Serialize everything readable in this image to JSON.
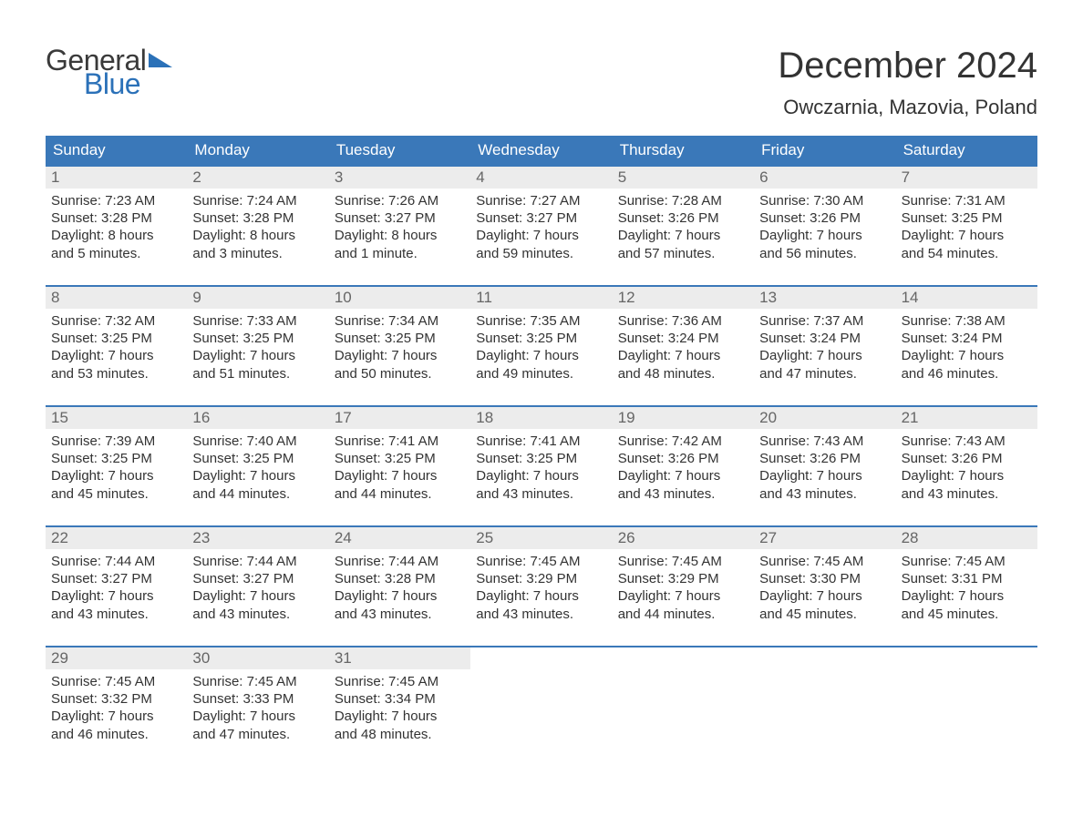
{
  "brand": {
    "word1": "General",
    "word2": "Blue",
    "triangle_color": "#2b71b8"
  },
  "title": "December 2024",
  "location": "Owczarnia, Mazovia, Poland",
  "colors": {
    "header_bg": "#3a78b9",
    "header_text": "#ffffff",
    "daynum_bg": "#ececec",
    "daynum_text": "#666666",
    "week_border": "#3a78b9",
    "body_text": "#333333",
    "page_bg": "#ffffff"
  },
  "fonts": {
    "title_size": 40,
    "location_size": 22,
    "weekday_size": 17,
    "body_size": 15
  },
  "weekdays": [
    "Sunday",
    "Monday",
    "Tuesday",
    "Wednesday",
    "Thursday",
    "Friday",
    "Saturday"
  ],
  "weeks": [
    [
      {
        "n": "1",
        "sunrise": "Sunrise: 7:23 AM",
        "sunset": "Sunset: 3:28 PM",
        "d1": "Daylight: 8 hours",
        "d2": "and 5 minutes."
      },
      {
        "n": "2",
        "sunrise": "Sunrise: 7:24 AM",
        "sunset": "Sunset: 3:28 PM",
        "d1": "Daylight: 8 hours",
        "d2": "and 3 minutes."
      },
      {
        "n": "3",
        "sunrise": "Sunrise: 7:26 AM",
        "sunset": "Sunset: 3:27 PM",
        "d1": "Daylight: 8 hours",
        "d2": "and 1 minute."
      },
      {
        "n": "4",
        "sunrise": "Sunrise: 7:27 AM",
        "sunset": "Sunset: 3:27 PM",
        "d1": "Daylight: 7 hours",
        "d2": "and 59 minutes."
      },
      {
        "n": "5",
        "sunrise": "Sunrise: 7:28 AM",
        "sunset": "Sunset: 3:26 PM",
        "d1": "Daylight: 7 hours",
        "d2": "and 57 minutes."
      },
      {
        "n": "6",
        "sunrise": "Sunrise: 7:30 AM",
        "sunset": "Sunset: 3:26 PM",
        "d1": "Daylight: 7 hours",
        "d2": "and 56 minutes."
      },
      {
        "n": "7",
        "sunrise": "Sunrise: 7:31 AM",
        "sunset": "Sunset: 3:25 PM",
        "d1": "Daylight: 7 hours",
        "d2": "and 54 minutes."
      }
    ],
    [
      {
        "n": "8",
        "sunrise": "Sunrise: 7:32 AM",
        "sunset": "Sunset: 3:25 PM",
        "d1": "Daylight: 7 hours",
        "d2": "and 53 minutes."
      },
      {
        "n": "9",
        "sunrise": "Sunrise: 7:33 AM",
        "sunset": "Sunset: 3:25 PM",
        "d1": "Daylight: 7 hours",
        "d2": "and 51 minutes."
      },
      {
        "n": "10",
        "sunrise": "Sunrise: 7:34 AM",
        "sunset": "Sunset: 3:25 PM",
        "d1": "Daylight: 7 hours",
        "d2": "and 50 minutes."
      },
      {
        "n": "11",
        "sunrise": "Sunrise: 7:35 AM",
        "sunset": "Sunset: 3:25 PM",
        "d1": "Daylight: 7 hours",
        "d2": "and 49 minutes."
      },
      {
        "n": "12",
        "sunrise": "Sunrise: 7:36 AM",
        "sunset": "Sunset: 3:24 PM",
        "d1": "Daylight: 7 hours",
        "d2": "and 48 minutes."
      },
      {
        "n": "13",
        "sunrise": "Sunrise: 7:37 AM",
        "sunset": "Sunset: 3:24 PM",
        "d1": "Daylight: 7 hours",
        "d2": "and 47 minutes."
      },
      {
        "n": "14",
        "sunrise": "Sunrise: 7:38 AM",
        "sunset": "Sunset: 3:24 PM",
        "d1": "Daylight: 7 hours",
        "d2": "and 46 minutes."
      }
    ],
    [
      {
        "n": "15",
        "sunrise": "Sunrise: 7:39 AM",
        "sunset": "Sunset: 3:25 PM",
        "d1": "Daylight: 7 hours",
        "d2": "and 45 minutes."
      },
      {
        "n": "16",
        "sunrise": "Sunrise: 7:40 AM",
        "sunset": "Sunset: 3:25 PM",
        "d1": "Daylight: 7 hours",
        "d2": "and 44 minutes."
      },
      {
        "n": "17",
        "sunrise": "Sunrise: 7:41 AM",
        "sunset": "Sunset: 3:25 PM",
        "d1": "Daylight: 7 hours",
        "d2": "and 44 minutes."
      },
      {
        "n": "18",
        "sunrise": "Sunrise: 7:41 AM",
        "sunset": "Sunset: 3:25 PM",
        "d1": "Daylight: 7 hours",
        "d2": "and 43 minutes."
      },
      {
        "n": "19",
        "sunrise": "Sunrise: 7:42 AM",
        "sunset": "Sunset: 3:26 PM",
        "d1": "Daylight: 7 hours",
        "d2": "and 43 minutes."
      },
      {
        "n": "20",
        "sunrise": "Sunrise: 7:43 AM",
        "sunset": "Sunset: 3:26 PM",
        "d1": "Daylight: 7 hours",
        "d2": "and 43 minutes."
      },
      {
        "n": "21",
        "sunrise": "Sunrise: 7:43 AM",
        "sunset": "Sunset: 3:26 PM",
        "d1": "Daylight: 7 hours",
        "d2": "and 43 minutes."
      }
    ],
    [
      {
        "n": "22",
        "sunrise": "Sunrise: 7:44 AM",
        "sunset": "Sunset: 3:27 PM",
        "d1": "Daylight: 7 hours",
        "d2": "and 43 minutes."
      },
      {
        "n": "23",
        "sunrise": "Sunrise: 7:44 AM",
        "sunset": "Sunset: 3:27 PM",
        "d1": "Daylight: 7 hours",
        "d2": "and 43 minutes."
      },
      {
        "n": "24",
        "sunrise": "Sunrise: 7:44 AM",
        "sunset": "Sunset: 3:28 PM",
        "d1": "Daylight: 7 hours",
        "d2": "and 43 minutes."
      },
      {
        "n": "25",
        "sunrise": "Sunrise: 7:45 AM",
        "sunset": "Sunset: 3:29 PM",
        "d1": "Daylight: 7 hours",
        "d2": "and 43 minutes."
      },
      {
        "n": "26",
        "sunrise": "Sunrise: 7:45 AM",
        "sunset": "Sunset: 3:29 PM",
        "d1": "Daylight: 7 hours",
        "d2": "and 44 minutes."
      },
      {
        "n": "27",
        "sunrise": "Sunrise: 7:45 AM",
        "sunset": "Sunset: 3:30 PM",
        "d1": "Daylight: 7 hours",
        "d2": "and 45 minutes."
      },
      {
        "n": "28",
        "sunrise": "Sunrise: 7:45 AM",
        "sunset": "Sunset: 3:31 PM",
        "d1": "Daylight: 7 hours",
        "d2": "and 45 minutes."
      }
    ],
    [
      {
        "n": "29",
        "sunrise": "Sunrise: 7:45 AM",
        "sunset": "Sunset: 3:32 PM",
        "d1": "Daylight: 7 hours",
        "d2": "and 46 minutes."
      },
      {
        "n": "30",
        "sunrise": "Sunrise: 7:45 AM",
        "sunset": "Sunset: 3:33 PM",
        "d1": "Daylight: 7 hours",
        "d2": "and 47 minutes."
      },
      {
        "n": "31",
        "sunrise": "Sunrise: 7:45 AM",
        "sunset": "Sunset: 3:34 PM",
        "d1": "Daylight: 7 hours",
        "d2": "and 48 minutes."
      },
      null,
      null,
      null,
      null
    ]
  ]
}
